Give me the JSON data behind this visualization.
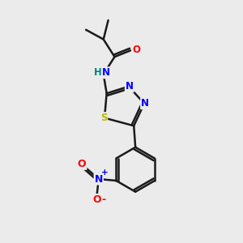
{
  "background_color": "#ebebeb",
  "bond_color": "#1a1a1a",
  "atom_colors": {
    "O": "#ff0000",
    "N": "#0000ff",
    "S": "#b8b800",
    "H": "#008080",
    "C": "#1a1a1a"
  },
  "figsize": [
    3.0,
    3.0
  ],
  "dpi": 100
}
